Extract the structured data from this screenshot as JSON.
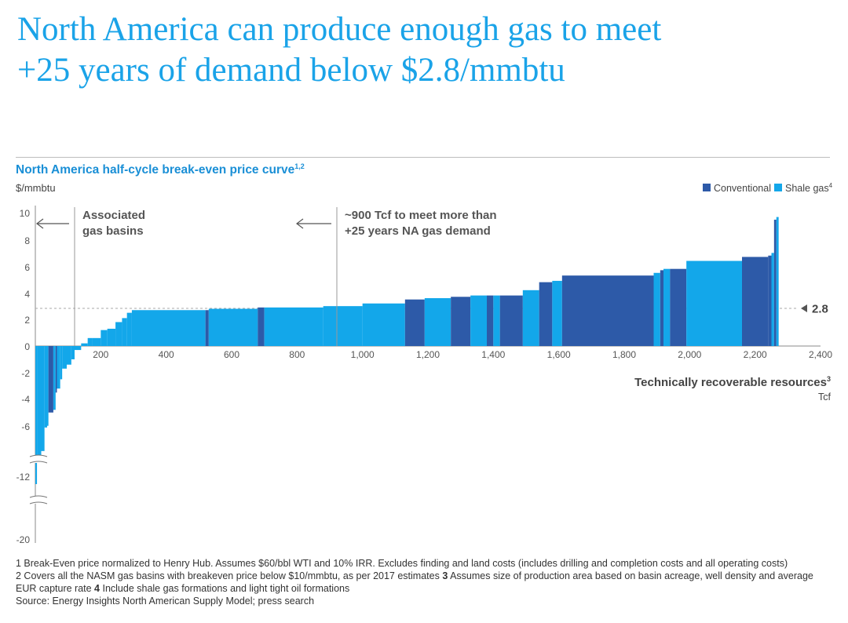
{
  "headline": {
    "line1": "North America can produce enough gas to meet",
    "line2": "+25 years of demand below $2.8/mmbtu"
  },
  "colors": {
    "accent": "#1aa3e8",
    "conventional": "#2d5aa8",
    "shale": "#13a7ea",
    "text": "#333333"
  },
  "chart_data": {
    "type": "bar",
    "title": "North America half-cycle break-even price curve",
    "title_sup": "1,2",
    "ylabel": "$/mmbtu",
    "xlabel": "Technically recoverable resources",
    "xlabel_sup": "3",
    "xlabel_unit": "Tcf",
    "xlim": [
      0,
      2400
    ],
    "ylim": [
      -20,
      10
    ],
    "y_axis_break": true,
    "y_ticks": [
      "10",
      "8",
      "6",
      "4",
      "2",
      "0",
      "-2",
      "-4",
      "-6",
      "-12",
      "-20"
    ],
    "x_ticks": [
      "200",
      "400",
      "600",
      "800",
      "1,000",
      "1,200",
      "1,400",
      "1,600",
      "1,800",
      "2,000",
      "2,200",
      "2,400"
    ],
    "legend": [
      {
        "name": "Conventional",
        "sup": ""
      },
      {
        "name": "Shale gas",
        "sup": "4"
      }
    ],
    "reference_line": {
      "value": 2.8,
      "label": "2.8"
    },
    "annotations": [
      {
        "x": 120,
        "line1": "Associated",
        "line2": "gas basins",
        "arrow": "left"
      },
      {
        "x": 920,
        "line1": "~900 Tcf to meet more than",
        "line2": "+25 years NA gas demand",
        "arrow": "left"
      }
    ],
    "series": [
      {
        "name": "Shale gas",
        "x0": 0,
        "x1": 5,
        "value": -13
      },
      {
        "name": "Shale gas",
        "x0": 5,
        "x1": 12,
        "value": -10
      },
      {
        "name": "Shale gas",
        "x0": 12,
        "x1": 18,
        "value": -9.5
      },
      {
        "name": "Shale gas",
        "x0": 18,
        "x1": 28,
        "value": -9
      },
      {
        "name": "Shale gas",
        "x0": 28,
        "x1": 36,
        "value": -6.2
      },
      {
        "name": "Shale gas",
        "x0": 36,
        "x1": 40,
        "value": -6
      },
      {
        "name": "Conventional",
        "x0": 40,
        "x1": 55,
        "value": -5
      },
      {
        "name": "Shale gas",
        "x0": 55,
        "x1": 62,
        "value": -4.8
      },
      {
        "name": "Conventional",
        "x0": 62,
        "x1": 66,
        "value": -3.5
      },
      {
        "name": "Shale gas",
        "x0": 66,
        "x1": 76,
        "value": -3.2
      },
      {
        "name": "Shale gas",
        "x0": 76,
        "x1": 82,
        "value": -2.5
      },
      {
        "name": "Shale gas",
        "x0": 82,
        "x1": 96,
        "value": -1.7
      },
      {
        "name": "Shale gas",
        "x0": 96,
        "x1": 110,
        "value": -1.4
      },
      {
        "name": "Shale gas",
        "x0": 110,
        "x1": 120,
        "value": -1
      },
      {
        "name": "Shale gas",
        "x0": 120,
        "x1": 140,
        "value": -0.3
      },
      {
        "name": "Shale gas",
        "x0": 140,
        "x1": 160,
        "value": 0.2
      },
      {
        "name": "Shale gas",
        "x0": 160,
        "x1": 175,
        "value": 0.6
      },
      {
        "name": "Shale gas",
        "x0": 175,
        "x1": 200,
        "value": 0.6
      },
      {
        "name": "Shale gas",
        "x0": 200,
        "x1": 220,
        "value": 1.2
      },
      {
        "name": "Shale gas",
        "x0": 220,
        "x1": 245,
        "value": 1.3
      },
      {
        "name": "Shale gas",
        "x0": 245,
        "x1": 265,
        "value": 1.8
      },
      {
        "name": "Shale gas",
        "x0": 265,
        "x1": 280,
        "value": 2.1
      },
      {
        "name": "Shale gas",
        "x0": 280,
        "x1": 295,
        "value": 2.5
      },
      {
        "name": "Shale gas",
        "x0": 295,
        "x1": 520,
        "value": 2.7
      },
      {
        "name": "Conventional",
        "x0": 520,
        "x1": 530,
        "value": 2.7
      },
      {
        "name": "Shale gas",
        "x0": 530,
        "x1": 680,
        "value": 2.8
      },
      {
        "name": "Conventional",
        "x0": 680,
        "x1": 700,
        "value": 2.9
      },
      {
        "name": "Shale gas",
        "x0": 700,
        "x1": 880,
        "value": 2.9
      },
      {
        "name": "Shale gas",
        "x0": 880,
        "x1": 1000,
        "value": 3
      },
      {
        "name": "Shale gas",
        "x0": 1000,
        "x1": 1130,
        "value": 3.2
      },
      {
        "name": "Conventional",
        "x0": 1130,
        "x1": 1190,
        "value": 3.5
      },
      {
        "name": "Shale gas",
        "x0": 1190,
        "x1": 1270,
        "value": 3.6
      },
      {
        "name": "Conventional",
        "x0": 1270,
        "x1": 1330,
        "value": 3.7
      },
      {
        "name": "Shale gas",
        "x0": 1330,
        "x1": 1380,
        "value": 3.8
      },
      {
        "name": "Conventional",
        "x0": 1380,
        "x1": 1400,
        "value": 3.8
      },
      {
        "name": "Shale gas",
        "x0": 1400,
        "x1": 1420,
        "value": 3.8
      },
      {
        "name": "Conventional",
        "x0": 1420,
        "x1": 1490,
        "value": 3.8
      },
      {
        "name": "Shale gas",
        "x0": 1490,
        "x1": 1540,
        "value": 4.2
      },
      {
        "name": "Conventional",
        "x0": 1540,
        "x1": 1580,
        "value": 4.8
      },
      {
        "name": "Shale gas",
        "x0": 1580,
        "x1": 1610,
        "value": 4.9
      },
      {
        "name": "Conventional",
        "x0": 1610,
        "x1": 1890,
        "value": 5.3
      },
      {
        "name": "Shale gas",
        "x0": 1890,
        "x1": 1910,
        "value": 5.5
      },
      {
        "name": "Conventional",
        "x0": 1910,
        "x1": 1920,
        "value": 5.7
      },
      {
        "name": "Shale gas",
        "x0": 1920,
        "x1": 1940,
        "value": 5.8
      },
      {
        "name": "Conventional",
        "x0": 1940,
        "x1": 1990,
        "value": 5.8
      },
      {
        "name": "Shale gas",
        "x0": 1990,
        "x1": 2160,
        "value": 6.4
      },
      {
        "name": "Conventional",
        "x0": 2160,
        "x1": 2240,
        "value": 6.7
      },
      {
        "name": "Conventional",
        "x0": 2240,
        "x1": 2250,
        "value": 6.8
      },
      {
        "name": "Shale gas",
        "x0": 2250,
        "x1": 2258,
        "value": 7
      },
      {
        "name": "Conventional",
        "x0": 2258,
        "x1": 2265,
        "value": 9.5
      },
      {
        "name": "Shale gas",
        "x0": 2265,
        "x1": 2272,
        "value": 9.7
      }
    ]
  },
  "footnotes": {
    "n1": "1",
    "t1": " Break-Even price normalized to Henry Hub. Assumes $60/bbl WTI and 10% IRR. Excludes finding and land costs (includes drilling and completion costs and all operating costs)",
    "n2": "2",
    "t2": " Covers all the NASM gas basins with breakeven price below $10/mmbtu, as per 2017 estimates ",
    "n3": "3",
    "t3": " Assumes size of production area based on basin acreage, well density and average EUR capture rate ",
    "n4": "4",
    "t4": " Include shale gas formations and light tight oil formations",
    "source": "Source: Energy Insights North American Supply Model; press search"
  }
}
